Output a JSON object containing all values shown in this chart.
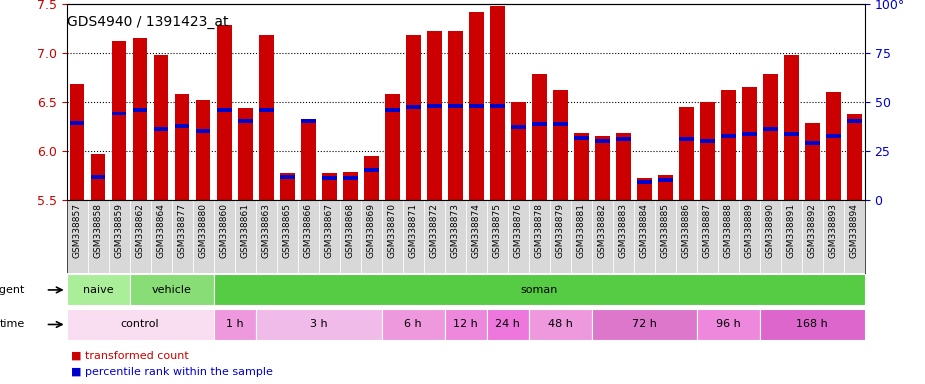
{
  "title": "GDS4940 / 1391423_at",
  "samples": [
    "GSM338857",
    "GSM338858",
    "GSM338859",
    "GSM338862",
    "GSM338864",
    "GSM338877",
    "GSM338880",
    "GSM338860",
    "GSM338861",
    "GSM338863",
    "GSM338865",
    "GSM338866",
    "GSM338867",
    "GSM338868",
    "GSM338869",
    "GSM338870",
    "GSM338871",
    "GSM338872",
    "GSM338873",
    "GSM338874",
    "GSM338875",
    "GSM338876",
    "GSM338878",
    "GSM338879",
    "GSM338881",
    "GSM338882",
    "GSM338883",
    "GSM338884",
    "GSM338885",
    "GSM338886",
    "GSM338887",
    "GSM338888",
    "GSM338889",
    "GSM338890",
    "GSM338891",
    "GSM338892",
    "GSM338893",
    "GSM338894"
  ],
  "bar_values": [
    6.68,
    5.97,
    7.12,
    7.15,
    6.98,
    6.58,
    6.52,
    7.28,
    6.44,
    7.18,
    5.77,
    6.28,
    5.77,
    5.78,
    5.95,
    6.58,
    7.18,
    7.22,
    7.22,
    7.42,
    7.48,
    6.5,
    6.78,
    6.62,
    6.18,
    6.15,
    6.18,
    5.72,
    5.75,
    6.45,
    6.5,
    6.62,
    6.65,
    6.78,
    6.98,
    6.28,
    6.6,
    6.38
  ],
  "percentile_values": [
    6.28,
    5.73,
    6.38,
    6.42,
    6.22,
    6.25,
    6.2,
    6.42,
    6.3,
    6.42,
    5.73,
    6.3,
    5.72,
    5.72,
    5.8,
    6.42,
    6.45,
    6.46,
    6.46,
    6.46,
    6.46,
    6.24,
    6.27,
    6.27,
    6.13,
    6.1,
    6.12,
    5.68,
    5.7,
    6.12,
    6.1,
    6.15,
    6.17,
    6.22,
    6.17,
    6.08,
    6.15,
    6.3
  ],
  "ylim": [
    5.5,
    7.5
  ],
  "yticks": [
    5.5,
    6.0,
    6.5,
    7.0,
    7.5
  ],
  "right_yticks": [
    0,
    25,
    50,
    75,
    100
  ],
  "right_ylim": [
    0,
    100
  ],
  "bar_color": "#cc0000",
  "percentile_color": "#0000cc",
  "plot_bg_color": "#ffffff",
  "agent_groups": [
    {
      "label": "naive",
      "start": 0,
      "end": 3,
      "color": "#aaee99"
    },
    {
      "label": "vehicle",
      "start": 3,
      "end": 7,
      "color": "#88dd77"
    },
    {
      "label": "soman",
      "start": 7,
      "end": 38,
      "color": "#55cc44"
    }
  ],
  "time_groups": [
    {
      "label": "control",
      "start": 0,
      "end": 7,
      "color": "#f9ddf0"
    },
    {
      "label": "1 h",
      "start": 7,
      "end": 9,
      "color": "#ee99dd"
    },
    {
      "label": "3 h",
      "start": 9,
      "end": 15,
      "color": "#f0bbe8"
    },
    {
      "label": "6 h",
      "start": 15,
      "end": 18,
      "color": "#ee99dd"
    },
    {
      "label": "12 h",
      "start": 18,
      "end": 20,
      "color": "#ee88dd"
    },
    {
      "label": "24 h",
      "start": 20,
      "end": 22,
      "color": "#ee77dd"
    },
    {
      "label": "48 h",
      "start": 22,
      "end": 25,
      "color": "#ee99dd"
    },
    {
      "label": "72 h",
      "start": 25,
      "end": 30,
      "color": "#dd77cc"
    },
    {
      "label": "96 h",
      "start": 30,
      "end": 33,
      "color": "#ee88dd"
    },
    {
      "label": "168 h",
      "start": 33,
      "end": 38,
      "color": "#dd66cc"
    }
  ],
  "legend_bar_color": "#cc0000",
  "legend_percentile_color": "#0000cc",
  "left_axis_color": "#cc0000",
  "right_axis_color": "#0000cc"
}
